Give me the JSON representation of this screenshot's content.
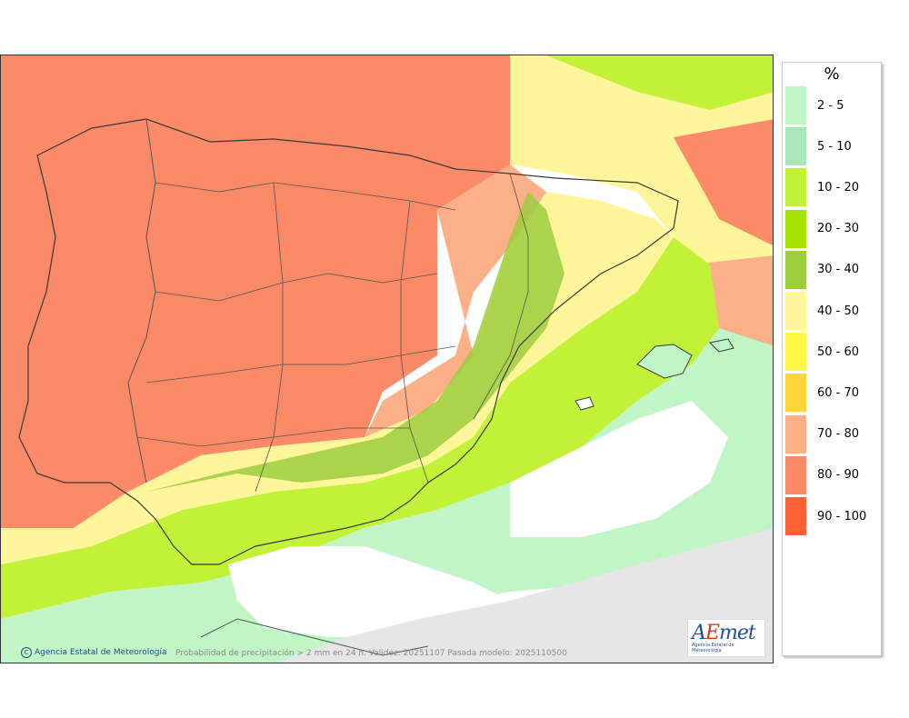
{
  "map": {
    "credit": "Agencia Estatal de Meteorología",
    "caption": "Probabilidad de precipitación > 2 mm en 24 h. Validez: 20251107 Pasada modelo: 2025110500",
    "logo": {
      "mark_a": "A",
      "mark_e": "E",
      "mark_rest": "met",
      "subtitle": "Agencia Estatal de Meteorología"
    }
  },
  "legend": {
    "unit": "%",
    "items": [
      {
        "label": "2 - 5",
        "color": "#c0f5c5"
      },
      {
        "label": "5 - 10",
        "color": "#a9e6b8"
      },
      {
        "label": "10 - 20",
        "color": "#c2f238"
      },
      {
        "label": "20 - 30",
        "color": "#a4e200"
      },
      {
        "label": "30 - 40",
        "color": "#9ccd3d"
      },
      {
        "label": "40 - 50",
        "color": "#fff59a"
      },
      {
        "label": "50 - 60",
        "color": "#fdf642"
      },
      {
        "label": "60 - 70",
        "color": "#fdd53b"
      },
      {
        "label": "70 - 80",
        "color": "#fcb088"
      },
      {
        "label": "80 - 90",
        "color": "#fb8a68"
      },
      {
        "label": "90 - 100",
        "color": "#fc6236"
      }
    ]
  }
}
